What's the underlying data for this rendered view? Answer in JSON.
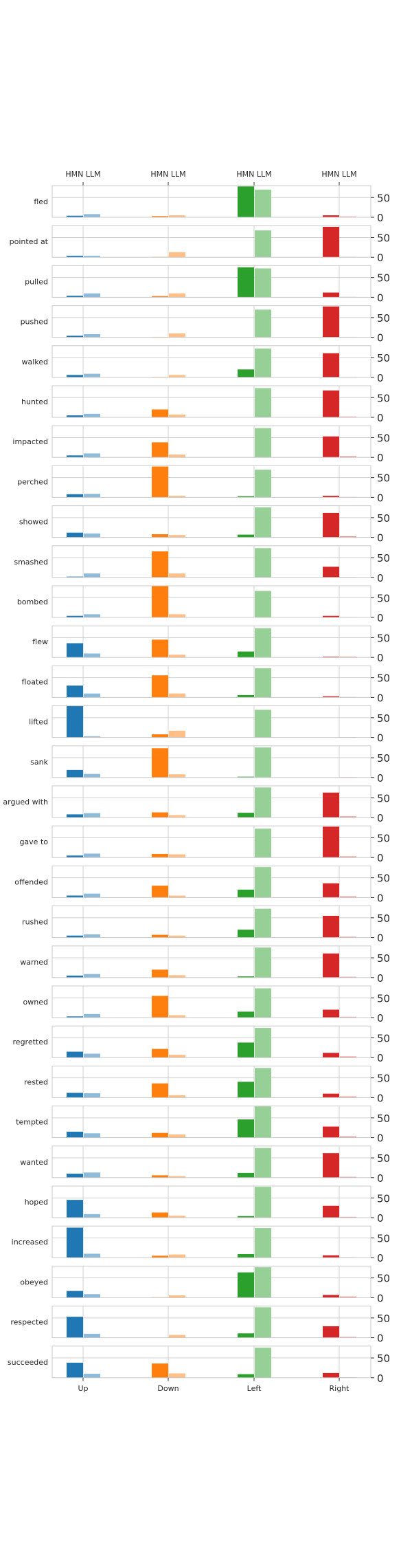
{
  "chart_data": {
    "type": "bar",
    "top_labels": [
      "HMN LLM",
      "HMN LLM",
      "HMN LLM",
      "HMN LLM"
    ],
    "categories": [
      "Up",
      "Down",
      "Left",
      "Right"
    ],
    "series": [
      {
        "name": "HMN"
      },
      {
        "name": "LLM"
      }
    ],
    "colors": {
      "HMN": [
        "#1f77b4",
        "#ff7f0e",
        "#2ca02c",
        "#d62728"
      ],
      "LLM": [
        "#8fbbda",
        "#ffbf86",
        "#96d096",
        "#eb9394"
      ]
    },
    "ylim": [
      0,
      80
    ],
    "yticks": [
      0,
      50
    ],
    "grid": true,
    "panels": [
      {
        "verb": "fled",
        "hmn": [
          4,
          3,
          78,
          5
        ],
        "llm": [
          8,
          5,
          70,
          2
        ]
      },
      {
        "verb": "pointed at",
        "hmn": [
          4,
          1,
          0,
          77
        ],
        "llm": [
          4,
          13,
          68,
          1
        ]
      },
      {
        "verb": "pulled",
        "hmn": [
          4,
          3,
          76,
          12
        ],
        "llm": [
          10,
          10,
          73,
          1
        ]
      },
      {
        "verb": "pushed",
        "hmn": [
          4,
          1,
          0,
          78
        ],
        "llm": [
          8,
          10,
          70,
          1
        ]
      },
      {
        "verb": "walked",
        "hmn": [
          6,
          1,
          20,
          61
        ],
        "llm": [
          9,
          6,
          73,
          1
        ]
      },
      {
        "verb": "hunted",
        "hmn": [
          5,
          20,
          0,
          68
        ],
        "llm": [
          9,
          7,
          74,
          2
        ]
      },
      {
        "verb": "impacted",
        "hmn": [
          5,
          38,
          0,
          53
        ],
        "llm": [
          10,
          7,
          74,
          3
        ]
      },
      {
        "verb": "perched",
        "hmn": [
          8,
          78,
          3,
          4
        ],
        "llm": [
          9,
          4,
          70,
          1
        ]
      },
      {
        "verb": "showed",
        "hmn": [
          12,
          8,
          7,
          62
        ],
        "llm": [
          10,
          6,
          76,
          3
        ]
      },
      {
        "verb": "smashed",
        "hmn": [
          2,
          66,
          0,
          27
        ],
        "llm": [
          10,
          10,
          74,
          1
        ]
      },
      {
        "verb": "bombed",
        "hmn": [
          4,
          79,
          0,
          4
        ],
        "llm": [
          8,
          8,
          67,
          1
        ]
      },
      {
        "verb": "flew",
        "hmn": [
          36,
          45,
          15,
          2
        ],
        "llm": [
          10,
          7,
          74,
          2
        ]
      },
      {
        "verb": "floated",
        "hmn": [
          30,
          56,
          6,
          3
        ],
        "llm": [
          10,
          10,
          74,
          1
        ]
      },
      {
        "verb": "lifted",
        "hmn": [
          80,
          8,
          0,
          0
        ],
        "llm": [
          3,
          17,
          70,
          1
        ]
      },
      {
        "verb": "sank",
        "hmn": [
          19,
          74,
          2,
          0
        ],
        "llm": [
          9,
          8,
          76,
          1
        ]
      },
      {
        "verb": "argued with",
        "hmn": [
          8,
          13,
          12,
          63
        ],
        "llm": [
          11,
          6,
          76,
          3
        ]
      },
      {
        "verb": "gave to",
        "hmn": [
          5,
          9,
          0,
          78
        ],
        "llm": [
          10,
          8,
          73,
          3
        ]
      },
      {
        "verb": "offended",
        "hmn": [
          5,
          30,
          20,
          36
        ],
        "llm": [
          10,
          5,
          77,
          3
        ]
      },
      {
        "verb": "rushed",
        "hmn": [
          5,
          7,
          20,
          55
        ],
        "llm": [
          8,
          5,
          73,
          2
        ]
      },
      {
        "verb": "warned",
        "hmn": [
          5,
          20,
          3,
          61
        ],
        "llm": [
          9,
          6,
          76,
          2
        ]
      },
      {
        "verb": "owned",
        "hmn": [
          3,
          55,
          15,
          20
        ],
        "llm": [
          9,
          6,
          74,
          2
        ]
      },
      {
        "verb": "regretted",
        "hmn": [
          15,
          22,
          38,
          12
        ],
        "llm": [
          10,
          7,
          75,
          3
        ]
      },
      {
        "verb": "rested",
        "hmn": [
          12,
          36,
          40,
          10
        ],
        "llm": [
          11,
          6,
          75,
          3
        ]
      },
      {
        "verb": "tempted",
        "hmn": [
          15,
          12,
          46,
          28
        ],
        "llm": [
          11,
          8,
          79,
          3
        ]
      },
      {
        "verb": "wanted",
        "hmn": [
          10,
          6,
          12,
          62
        ],
        "llm": [
          13,
          4,
          75,
          2
        ]
      },
      {
        "verb": "hoped",
        "hmn": [
          45,
          13,
          4,
          30
        ],
        "llm": [
          9,
          5,
          78,
          2
        ]
      },
      {
        "verb": "increased",
        "hmn": [
          76,
          5,
          9,
          6
        ],
        "llm": [
          10,
          8,
          75,
          1
        ]
      },
      {
        "verb": "obeyed",
        "hmn": [
          17,
          1,
          64,
          7
        ],
        "llm": [
          9,
          6,
          77,
          3
        ]
      },
      {
        "verb": "respected",
        "hmn": [
          53,
          0,
          11,
          29
        ],
        "llm": [
          10,
          7,
          77,
          2
        ]
      },
      {
        "verb": "succeeded",
        "hmn": [
          38,
          36,
          9,
          12
        ],
        "llm": [
          10,
          11,
          76,
          1
        ]
      }
    ]
  }
}
